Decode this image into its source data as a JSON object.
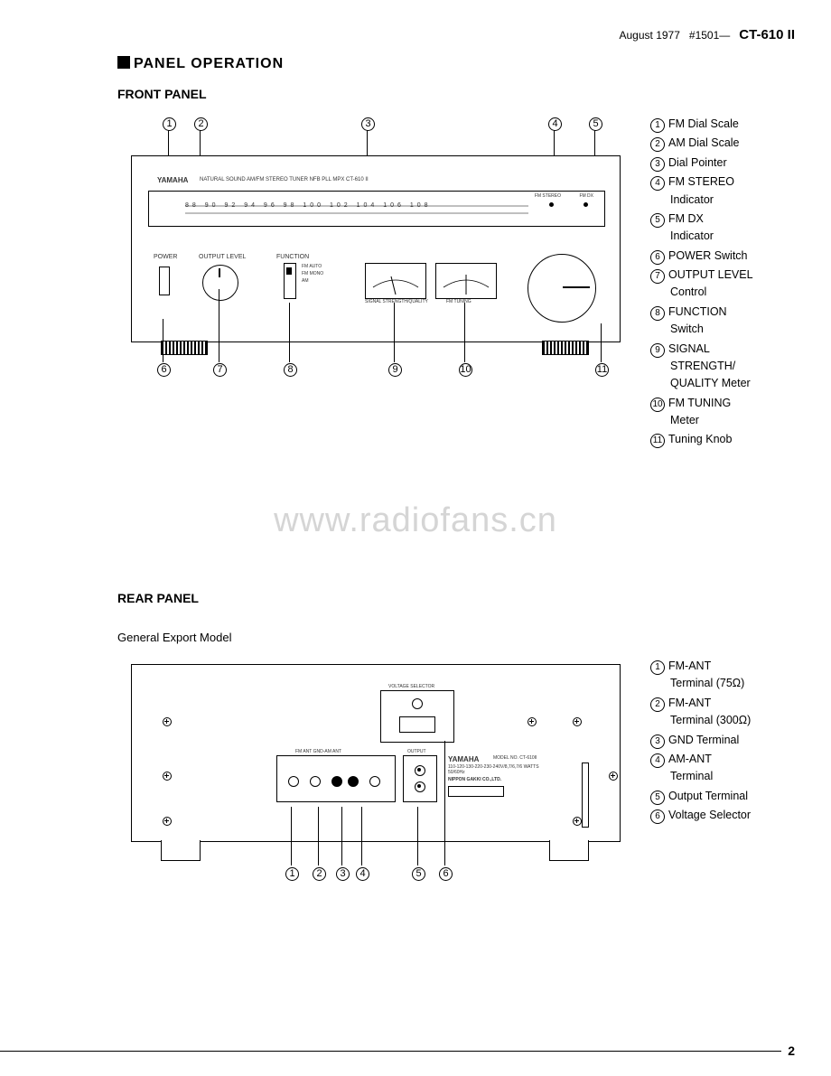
{
  "header": {
    "date": "August 1977",
    "ref": "#1501—",
    "model": "CT-610 II"
  },
  "titles": {
    "main": "PANEL OPERATION",
    "front": "FRONT PANEL",
    "rear": "REAR PANEL",
    "rear_sub": "General Export Model"
  },
  "watermark": "www.radiofans.cn",
  "page_number": "2",
  "front_legend": [
    {
      "n": "1",
      "lines": [
        "FM Dial Scale"
      ]
    },
    {
      "n": "2",
      "lines": [
        "AM Dial Scale"
      ]
    },
    {
      "n": "3",
      "lines": [
        "Dial Pointer"
      ]
    },
    {
      "n": "4",
      "lines": [
        "FM STEREO",
        "Indicator"
      ]
    },
    {
      "n": "5",
      "lines": [
        "FM DX",
        "Indicator"
      ]
    },
    {
      "n": "6",
      "lines": [
        "POWER Switch"
      ]
    },
    {
      "n": "7",
      "lines": [
        "OUTPUT LEVEL",
        "Control"
      ]
    },
    {
      "n": "8",
      "lines": [
        "FUNCTION",
        "Switch"
      ]
    },
    {
      "n": "9",
      "lines": [
        "SIGNAL",
        "STRENGTH/",
        "QUALITY Meter"
      ]
    },
    {
      "n": "10",
      "lines": [
        "FM TUNING",
        "Meter"
      ]
    },
    {
      "n": "11",
      "lines": [
        "Tuning Knob"
      ]
    }
  ],
  "rear_legend": [
    {
      "n": "1",
      "lines": [
        "FM-ANT",
        "Terminal (75Ω)"
      ]
    },
    {
      "n": "2",
      "lines": [
        "FM-ANT",
        "Terminal (300Ω)"
      ]
    },
    {
      "n": "3",
      "lines": [
        "GND Terminal"
      ]
    },
    {
      "n": "4",
      "lines": [
        "AM-ANT",
        "Terminal"
      ]
    },
    {
      "n": "5",
      "lines": [
        "Output Terminal"
      ]
    },
    {
      "n": "6",
      "lines": [
        "Voltage Selector"
      ]
    }
  ],
  "front_diagram": {
    "brand": "YAMAHA",
    "desc": "NATURAL SOUND AM/FM STEREO TUNER  NFB PLL MPX  CT-610 II",
    "labels": {
      "power": "POWER",
      "output": "OUTPUT LEVEL",
      "function": "FUNCTION",
      "sig": "SIGNAL STRENGTH/QUALITY",
      "tun": "FM TUNING",
      "stereo": "FM STEREO",
      "dx": "FM DX"
    },
    "fm_dial": "88  90  92  94  96  98  100  102  104  106  108",
    "top_callouts": [
      "1",
      "2",
      "3",
      "4",
      "5"
    ],
    "bottom_callouts": [
      "6",
      "7",
      "8",
      "9",
      "10",
      "11"
    ]
  },
  "rear_diagram": {
    "brand": "YAMAHA",
    "model_label": "MODEL NO. CT-610II",
    "volt_label": "VOLTAGE SELECTOR",
    "volt_text": "110-120-130-220-230-240V/8,7/6,7/6 WATTS 50/60Hz",
    "maker": "NIPPON GAKKI CO.,LTD.",
    "ant_label": "FM ANT        GND-AM ANT",
    "out_label": "OUTPUT",
    "bottom_callouts": [
      "1",
      "2",
      "3",
      "4",
      "5",
      "6"
    ]
  }
}
